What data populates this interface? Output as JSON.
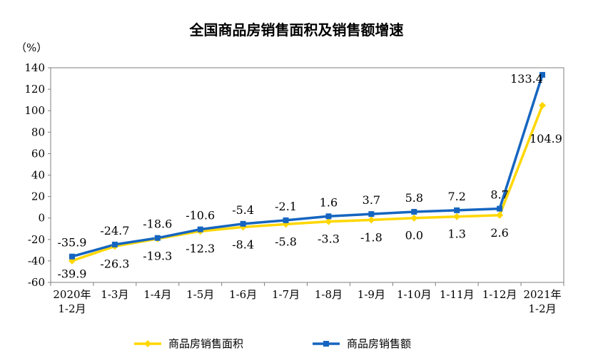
{
  "chart_data": {
    "type": "line",
    "title": "全国商品房销售面积及销售额增速",
    "unit_label": "（%）",
    "categories": [
      "2020年\n1-2月",
      "1-3月",
      "1-4月",
      "1-5月",
      "1-6月",
      "1-7月",
      "1-8月",
      "1-9月",
      "1-10月",
      "1-11月",
      "1-12月",
      "2021年\n1-2月"
    ],
    "ylim": [
      -60,
      140
    ],
    "yticks": [
      -60,
      -40,
      -20,
      0,
      20,
      40,
      60,
      80,
      100,
      120,
      140
    ],
    "grid": false,
    "legend_position": "bottom",
    "series": [
      {
        "name": "商品房销售面积",
        "color": "#FFD700",
        "marker": "diamond",
        "values": [
          -39.9,
          -26.3,
          -19.3,
          -12.3,
          -8.4,
          -5.8,
          -3.3,
          -1.8,
          0.0,
          1.3,
          2.6,
          104.9
        ],
        "labels": [
          "-39.9",
          "-26.3",
          "-19.3",
          "-12.3",
          "-8.4",
          "-5.8",
          "-3.3",
          "-1.8",
          "0.0",
          "1.3",
          "2.6",
          "104.9"
        ]
      },
      {
        "name": "商品房销售额",
        "color": "#1565C0",
        "marker": "square",
        "values": [
          -35.9,
          -24.7,
          -18.6,
          -10.6,
          -5.4,
          -2.1,
          1.6,
          3.7,
          5.8,
          7.2,
          8.7,
          133.4
        ],
        "labels": [
          "-35.9",
          "-24.7",
          "-18.6",
          "-10.6",
          "-5.4",
          "-2.1",
          "1.6",
          "3.7",
          "5.8",
          "7.2",
          "8.7",
          "133.4"
        ]
      }
    ]
  }
}
